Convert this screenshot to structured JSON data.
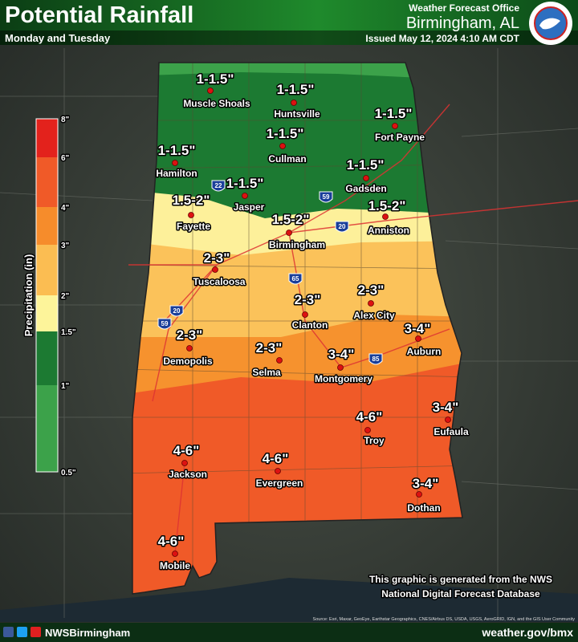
{
  "header": {
    "title": "Potential Rainfall",
    "subtitle": "Monday and Tuesday",
    "office": "Weather Forecast Office",
    "location": "Birmingham, AL",
    "issued": "Issued May 12, 2024 4:10 AM CDT"
  },
  "legend": {
    "title": "Precipitation (in)",
    "ticks": [
      "8\"",
      "6\"",
      "4\"",
      "3\"",
      "2\"",
      "1.5\"",
      "1\"",
      "0.5\""
    ],
    "colors": [
      "#e3221c",
      "#f05a28",
      "#f68c2b",
      "#fbbd52",
      "#fdf49a",
      "#1c7a32",
      "#3ca24a"
    ]
  },
  "cities": [
    {
      "name": "Muscle Shoals",
      "amount": "1-1.5\""
    },
    {
      "name": "Huntsville",
      "amount": "1-1.5\""
    },
    {
      "name": "Fort Payne",
      "amount": "1-1.5\""
    },
    {
      "name": "Cullman",
      "amount": "1-1.5\""
    },
    {
      "name": "Hamilton",
      "amount": "1-1.5\""
    },
    {
      "name": "Gadsden",
      "amount": "1-1.5\""
    },
    {
      "name": "Jasper",
      "amount": "1-1.5\""
    },
    {
      "name": "Fayette",
      "amount": "1.5-2\""
    },
    {
      "name": "Birmingham",
      "amount": "1.5-2\""
    },
    {
      "name": "Anniston",
      "amount": "1.5-2\""
    },
    {
      "name": "Tuscaloosa",
      "amount": "2-3\""
    },
    {
      "name": "Alex City",
      "amount": "2-3\""
    },
    {
      "name": "Clanton",
      "amount": "2-3\""
    },
    {
      "name": "Demopolis",
      "amount": "2-3\""
    },
    {
      "name": "Auburn",
      "amount": "3-4\""
    },
    {
      "name": "Selma",
      "amount": "2-3\""
    },
    {
      "name": "Montgomery",
      "amount": "3-4\""
    },
    {
      "name": "Eufaula",
      "amount": "3-4\""
    },
    {
      "name": "Troy",
      "amount": "4-6\""
    },
    {
      "name": "Jackson",
      "amount": "4-6\""
    },
    {
      "name": "Evergreen",
      "amount": "4-6\""
    },
    {
      "name": "Dothan",
      "amount": "3-4\""
    },
    {
      "name": "Mobile",
      "amount": "4-6\""
    }
  ],
  "interstates": [
    "22",
    "59",
    "20",
    "65",
    "20",
    "59",
    "85"
  ],
  "note": [
    "This graphic is generated from the NWS",
    "National Digital Forecast Database"
  ],
  "source": "Source: Esri, Maxar, GeoEye, Earthstar Geographics, CNES/Airbus DS, USDA, USGS, AeroGRID, IGN, and the GIS User Community",
  "footer": {
    "social": "NWSBirmingham",
    "website": "weather.gov/bmx"
  }
}
